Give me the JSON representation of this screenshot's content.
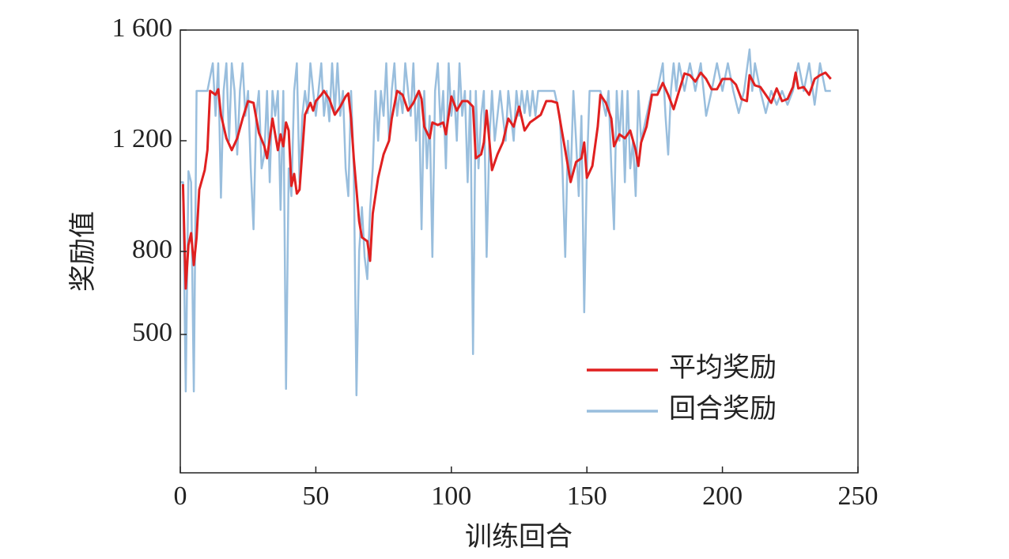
{
  "chart_data": {
    "type": "line",
    "xlabel": "训练回合",
    "ylabel": "奖励值",
    "xlim": [
      0,
      250
    ],
    "xticks": [
      0,
      50,
      100,
      150,
      200,
      250
    ],
    "ylim": [
      0,
      1600
    ],
    "yticks": [
      {
        "value": 500,
        "label": "500"
      },
      800,
      {
        "value": 1200,
        "label": "1 200"
      },
      {
        "value": 1600,
        "label": "1 600"
      }
    ],
    "legend": "lower right",
    "series": [
      {
        "name": "平均奖励",
        "color": "#e02020",
        "x": [
          1,
          2,
          3,
          4,
          5,
          6,
          7,
          9,
          10,
          11,
          13,
          14,
          15,
          17,
          19,
          21,
          23,
          25,
          27,
          29,
          31,
          32,
          34,
          36,
          37,
          38,
          39,
          40,
          41,
          42,
          43,
          44,
          46,
          48,
          49,
          50,
          52,
          53,
          55,
          57,
          59,
          61,
          62,
          63,
          64,
          65,
          66,
          67,
          69,
          70,
          71,
          73,
          75,
          77,
          78,
          80,
          82,
          84,
          86,
          88,
          89,
          90,
          92,
          93,
          95,
          97,
          98,
          100,
          102,
          104,
          106,
          108,
          109,
          111,
          112,
          113,
          115,
          117,
          119,
          121,
          123,
          125,
          127,
          129,
          131,
          133,
          135,
          137,
          139,
          141,
          143,
          144,
          146,
          148,
          149,
          150,
          152,
          154,
          155,
          157,
          159,
          160,
          162,
          164,
          166,
          168,
          169,
          170,
          172,
          174,
          176,
          178,
          180,
          182,
          184,
          186,
          188,
          190,
          192,
          194,
          196,
          198,
          200,
          203,
          205,
          207,
          209,
          210,
          212,
          214,
          216,
          218,
          220,
          222,
          224,
          226,
          227,
          228,
          230,
          232,
          234,
          236,
          238,
          240
        ],
        "values": [
          1043,
          666,
          823,
          866,
          751,
          851,
          1023,
          1094,
          1166,
          1380,
          1366,
          1386,
          1294,
          1209,
          1166,
          1209,
          1280,
          1343,
          1337,
          1229,
          1180,
          1137,
          1280,
          1166,
          1223,
          1180,
          1266,
          1237,
          1037,
          1080,
          1009,
          1023,
          1294,
          1337,
          1309,
          1343,
          1366,
          1380,
          1351,
          1294,
          1323,
          1360,
          1371,
          1280,
          1137,
          1023,
          909,
          851,
          837,
          766,
          937,
          1066,
          1151,
          1200,
          1280,
          1380,
          1366,
          1309,
          1337,
          1380,
          1351,
          1251,
          1209,
          1266,
          1257,
          1266,
          1223,
          1360,
          1309,
          1343,
          1343,
          1323,
          1137,
          1151,
          1194,
          1309,
          1094,
          1151,
          1194,
          1280,
          1251,
          1323,
          1237,
          1266,
          1280,
          1294,
          1343,
          1343,
          1337,
          1223,
          1109,
          1051,
          1123,
          1137,
          1194,
          1066,
          1109,
          1251,
          1366,
          1337,
          1280,
          1180,
          1223,
          1209,
          1237,
          1166,
          1109,
          1194,
          1251,
          1366,
          1366,
          1409,
          1366,
          1314,
          1380,
          1443,
          1437,
          1414,
          1446,
          1423,
          1386,
          1386,
          1423,
          1423,
          1403,
          1351,
          1343,
          1437,
          1400,
          1394,
          1366,
          1337,
          1389,
          1343,
          1351,
          1394,
          1446,
          1389,
          1394,
          1366,
          1423,
          1437,
          1446,
          1423
        ]
      },
      {
        "name": "回合奖励",
        "color": "#99bedd",
        "x": [
          0,
          1,
          2,
          3,
          4,
          5,
          6,
          8,
          10,
          12,
          13,
          14,
          15,
          16,
          17,
          18,
          19,
          20,
          21,
          22,
          23,
          24,
          25,
          26,
          27,
          28,
          29,
          30,
          31,
          32,
          33,
          34,
          35,
          36,
          37,
          38,
          39,
          40,
          41,
          42,
          43,
          44,
          45,
          46,
          47,
          48,
          49,
          50,
          51,
          52,
          53,
          54,
          55,
          56,
          57,
          58,
          59,
          60,
          61,
          62,
          63,
          64,
          65,
          66,
          67,
          68,
          69,
          70,
          71,
          72,
          73,
          74,
          75,
          76,
          77,
          78,
          79,
          80,
          81,
          82,
          83,
          84,
          85,
          86,
          87,
          88,
          89,
          90,
          91,
          92,
          93,
          94,
          95,
          96,
          97,
          98,
          99,
          100,
          101,
          102,
          103,
          104,
          105,
          106,
          107,
          108,
          109,
          110,
          111,
          112,
          113,
          114,
          115,
          116,
          117,
          118,
          119,
          120,
          121,
          122,
          123,
          124,
          125,
          126,
          127,
          128,
          129,
          130,
          131,
          132,
          138,
          140,
          141,
          142,
          143,
          144,
          145,
          146,
          147,
          148,
          149,
          150,
          151,
          155,
          157,
          158,
          159,
          160,
          161,
          162,
          163,
          164,
          165,
          166,
          167,
          168,
          169,
          170,
          174,
          176,
          178,
          179,
          180,
          181,
          182,
          183,
          184,
          186,
          188,
          190,
          192,
          194,
          196,
          198,
          200,
          202,
          204,
          206,
          208,
          210,
          211,
          212,
          214,
          216,
          218,
          220,
          222,
          224,
          226,
          228,
          230,
          232,
          234,
          236,
          238,
          240
        ],
        "values": [
          1050,
          1050,
          294,
          1090,
          1050,
          294,
          1380,
          1380,
          1380,
          1480,
          1290,
          1480,
          994,
          1380,
          1480,
          1200,
          1480,
          1380,
          1150,
          1380,
          1480,
          1290,
          1380,
          1100,
          880,
          1290,
          1380,
          1100,
          1150,
          1380,
          1050,
          1380,
          1290,
          1380,
          950,
          1380,
          303,
          1100,
          1000,
          1380,
          1480,
          1050,
          1290,
          1380,
          1300,
          1480,
          1380,
          1290,
          1380,
          1480,
          1290,
          1380,
          1270,
          1480,
          1300,
          1480,
          1290,
          1380,
          1100,
          1000,
          1380,
          1100,
          280,
          800,
          960,
          780,
          700,
          950,
          1100,
          1380,
          1200,
          1380,
          1290,
          1480,
          1200,
          1380,
          1480,
          1290,
          1380,
          1300,
          1480,
          1380,
          1290,
          1480,
          1200,
          1380,
          880,
          1380,
          1100,
          1290,
          780,
          1380,
          1480,
          1250,
          1380,
          1100,
          1480,
          1290,
          1380,
          1200,
          1480,
          1290,
          1380,
          1050,
          1380,
          429,
          1380,
          1100,
          1290,
          1380,
          780,
          1200,
          1380,
          1200,
          1290,
          1380,
          1290,
          1200,
          1380,
          1290,
          1200,
          1380,
          1290,
          1380,
          1300,
          1380,
          1290,
          1380,
          1290,
          1380,
          1380,
          1290,
          1100,
          780,
          1200,
          1050,
          1380,
          1200,
          1000,
          1290,
          580,
          1100,
          1380,
          1380,
          1290,
          1380,
          1100,
          880,
          1380,
          1200,
          1380,
          1050,
          1380,
          1100,
          1200,
          1000,
          1380,
          1200,
          1380,
          1380,
          1480,
          1290,
          1150,
          1380,
          1480,
          1380,
          1480,
          1380,
          1480,
          1380,
          1480,
          1290,
          1380,
          1480,
          1380,
          1480,
          1380,
          1300,
          1380,
          1530,
          1380,
          1480,
          1380,
          1300,
          1380,
          1330,
          1380,
          1330,
          1380,
          1480,
          1380,
          1480,
          1330,
          1480,
          1380,
          1380
        ]
      }
    ]
  }
}
